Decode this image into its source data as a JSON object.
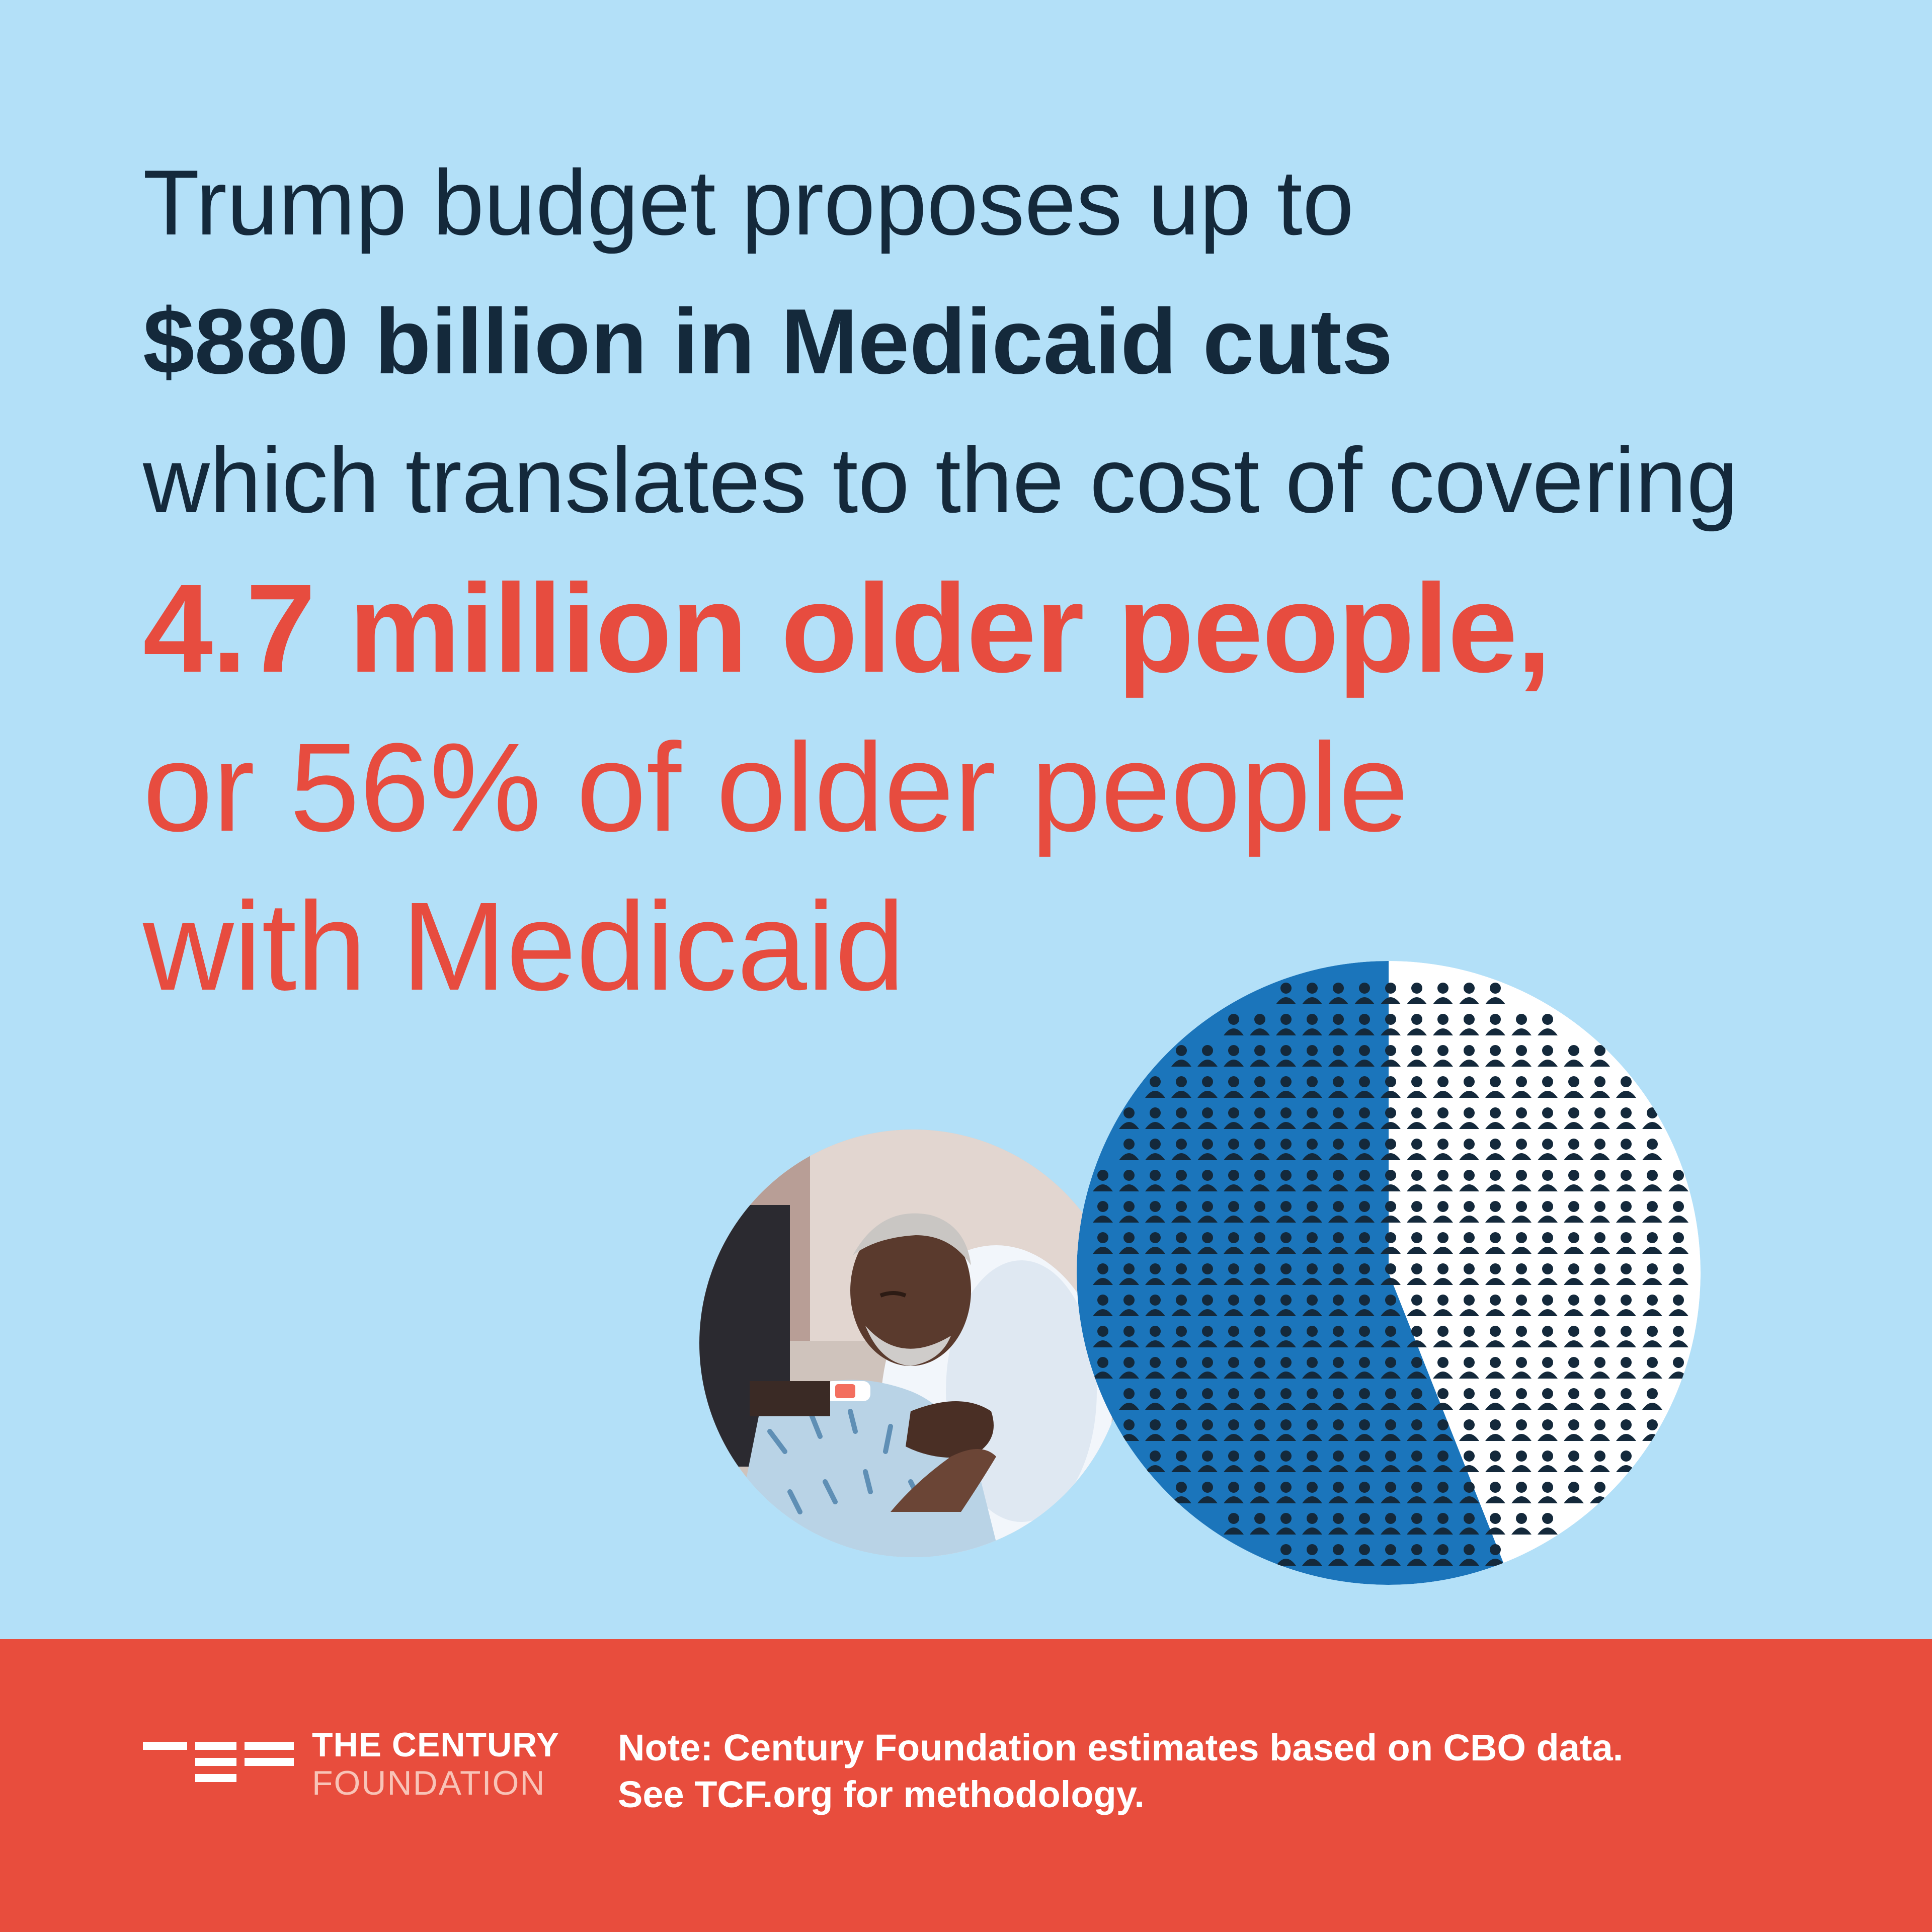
{
  "headline": {
    "line1": "Trump budget proposes up to",
    "line2": "$880 billion in Medicaid cuts",
    "line3": "which translates to the cost of covering",
    "line4": "4.7 million older people,",
    "line5": "or 56% of older people",
    "line6": "with Medicaid"
  },
  "share": {
    "percent_affected": 56,
    "label": "56%"
  },
  "photo": {
    "description": "older man resting in a hospital bed holding a hand on his shoulder"
  },
  "footer": {
    "logo_line1": "THE CENTURY",
    "logo_line2": "FOUNDATION",
    "note_line1": "Note: Century Foundation estimates based on CBO data.",
    "note_line2": "See TCF.org for methodology."
  },
  "colors": {
    "background": "#b3e0f8",
    "navy": "#14293b",
    "red": "#e74c3f",
    "blue_share": "#1b75bb",
    "white_share": "#ffffff",
    "footer": "#e84d3d"
  }
}
